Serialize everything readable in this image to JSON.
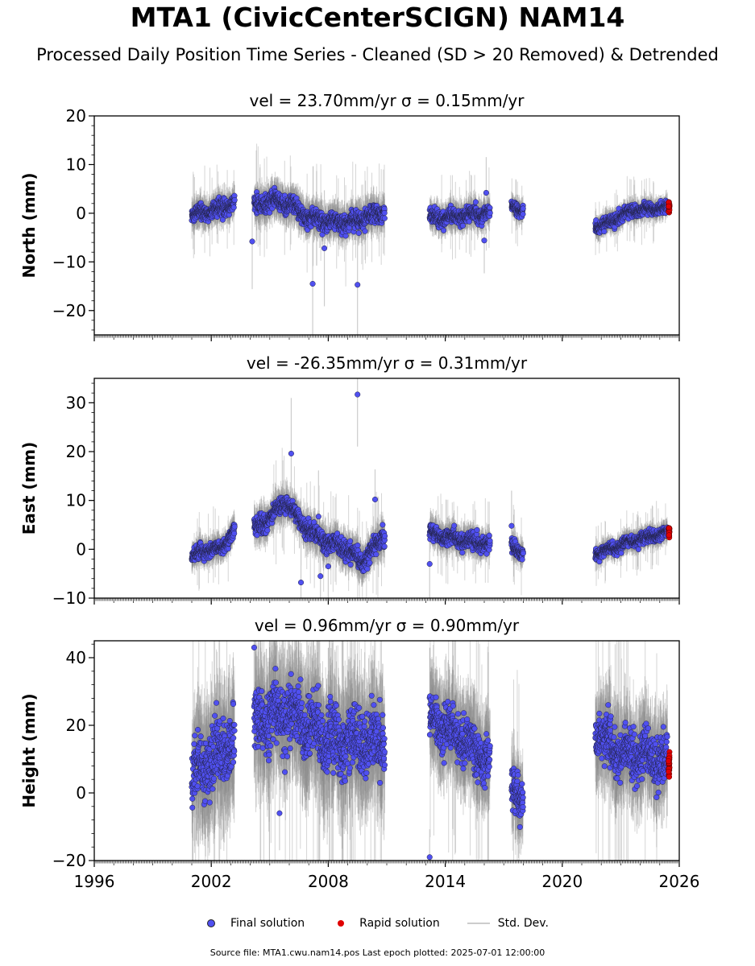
{
  "title": "MTA1 (CivicCenterSCIGN) NAM14",
  "subtitle": "Processed Daily Position Time Series - Cleaned (SD > 20 Removed) & Detrended",
  "footer": "Source file: MTA1.cwu.nam14.pos  Last epoch plotted: 2025-07-01 12:00:00",
  "legend": {
    "final_label": "Final solution",
    "rapid_label": "Rapid solution",
    "std_label": "Std. Dev."
  },
  "colors": {
    "final": "#5050f0",
    "rapid": "#e00000",
    "std": "#cccccc",
    "axes": "#000000"
  },
  "chart_data": [
    {
      "type": "scatter",
      "title": "vel = 23.70mm/yr   σ = 0.15mm/yr",
      "ylabel": "North (mm)",
      "xlabel": "",
      "xlim": [
        1996,
        2026
      ],
      "ylim": [
        -25,
        20
      ],
      "yticks": [
        -20,
        -10,
        0,
        10,
        20
      ],
      "segments": [
        {
          "start": 2001.0,
          "end": 2003.2,
          "mean": [
            [
              2001.0,
              -0.5
            ],
            [
              2003.2,
              2.0
            ]
          ],
          "spread": 1.4
        },
        {
          "start": 2004.2,
          "end": 2010.9,
          "mean": [
            [
              2004.2,
              1.5
            ],
            [
              2005.2,
              2.5
            ],
            [
              2006.0,
              2.0
            ],
            [
              2007.0,
              -1.0
            ],
            [
              2008.5,
              -2.0
            ],
            [
              2009.5,
              -1.5
            ],
            [
              2010.9,
              0.5
            ]
          ],
          "spread": 1.6
        },
        {
          "start": 2013.2,
          "end": 2016.3,
          "mean": [
            [
              2013.2,
              -1.0
            ],
            [
              2016.3,
              0.0
            ]
          ],
          "spread": 1.3
        },
        {
          "start": 2017.4,
          "end": 2018.0,
          "mean": [
            [
              2017.4,
              1.5
            ],
            [
              2018.0,
              0.5
            ]
          ],
          "spread": 1.0
        },
        {
          "start": 2021.7,
          "end": 2025.4,
          "mean": [
            [
              2021.7,
              -3.0
            ],
            [
              2022.6,
              -1.5
            ],
            [
              2023.5,
              0.5
            ],
            [
              2025.4,
              1.2
            ]
          ],
          "spread": 1.0
        }
      ],
      "outliers": [
        [
          2007.2,
          -14.5
        ],
        [
          2009.5,
          -14.7
        ],
        [
          2004.1,
          -5.8
        ],
        [
          2007.8,
          -7.2
        ],
        [
          2016.1,
          4.2
        ],
        [
          2016.0,
          -5.6
        ]
      ],
      "rapid": {
        "start": 2025.45,
        "end": 2025.5,
        "mean": 1.2,
        "spread": 0.9
      }
    },
    {
      "type": "scatter",
      "title": "vel = -26.35mm/yr   σ = 0.31mm/yr",
      "ylabel": "East (mm)",
      "xlabel": "",
      "xlim": [
        1996,
        2026
      ],
      "ylim": [
        -10,
        35
      ],
      "yticks": [
        -10,
        0,
        10,
        20,
        30
      ],
      "segments": [
        {
          "start": 2001.0,
          "end": 2003.2,
          "mean": [
            [
              2001.0,
              -1.5
            ],
            [
              2001.8,
              0.0
            ],
            [
              2002.5,
              0.0
            ],
            [
              2003.2,
              4.0
            ]
          ],
          "spread": 1.2
        },
        {
          "start": 2004.2,
          "end": 2010.9,
          "mean": [
            [
              2004.2,
              4.0
            ],
            [
              2005.0,
              6.5
            ],
            [
              2005.8,
              10.0
            ],
            [
              2006.5,
              6.0
            ],
            [
              2007.2,
              3.0
            ],
            [
              2008.0,
              1.5
            ],
            [
              2009.0,
              0.0
            ],
            [
              2009.8,
              -2.5
            ],
            [
              2010.9,
              3.0
            ]
          ],
          "spread": 1.6
        },
        {
          "start": 2013.2,
          "end": 2016.3,
          "mean": [
            [
              2013.2,
              3.5
            ],
            [
              2014.0,
              2.5
            ],
            [
              2016.3,
              1.0
            ]
          ],
          "spread": 1.3
        },
        {
          "start": 2017.4,
          "end": 2018.0,
          "mean": [
            [
              2017.4,
              0.5
            ],
            [
              2018.0,
              -0.5
            ]
          ],
          "spread": 1.2
        },
        {
          "start": 2021.7,
          "end": 2025.4,
          "mean": [
            [
              2021.7,
              -1.0
            ],
            [
              2023.5,
              1.5
            ],
            [
              2025.4,
              3.5
            ]
          ],
          "spread": 1.0
        }
      ],
      "outliers": [
        [
          2009.5,
          31.7
        ],
        [
          2006.1,
          19.6
        ],
        [
          2010.4,
          10.2
        ],
        [
          2007.5,
          6.7
        ],
        [
          2013.2,
          -3.0
        ],
        [
          2006.6,
          -6.8
        ],
        [
          2007.6,
          -5.5
        ],
        [
          2008.0,
          -3.5
        ],
        [
          2017.4,
          4.8
        ]
      ],
      "rapid": {
        "start": 2025.45,
        "end": 2025.5,
        "mean": 3.5,
        "spread": 0.8
      }
    },
    {
      "type": "scatter",
      "title": "vel = 0.96mm/yr   σ = 0.90mm/yr",
      "ylabel": "Height (mm)",
      "xlabel": "",
      "xlim": [
        1996,
        2026
      ],
      "ylim": [
        -20,
        45
      ],
      "yticks": [
        -20,
        0,
        20,
        40
      ],
      "xticks": [
        1996,
        2002,
        2008,
        2014,
        2020,
        2026
      ],
      "segments": [
        {
          "start": 2001.0,
          "end": 2003.2,
          "mean": [
            [
              2001.0,
              5.0
            ],
            [
              2002.0,
              10.0
            ],
            [
              2003.2,
              15.0
            ]
          ],
          "spread": 8.0
        },
        {
          "start": 2004.2,
          "end": 2010.9,
          "mean": [
            [
              2004.2,
              20.0
            ],
            [
              2006.0,
              24.0
            ],
            [
              2008.0,
              15.0
            ],
            [
              2010.9,
              15.0
            ]
          ],
          "spread": 8.0
        },
        {
          "start": 2013.2,
          "end": 2016.3,
          "mean": [
            [
              2013.2,
              22.0
            ],
            [
              2014.5,
              18.0
            ],
            [
              2016.3,
              8.0
            ]
          ],
          "spread": 6.0
        },
        {
          "start": 2017.4,
          "end": 2018.0,
          "mean": [
            [
              2017.4,
              2.0
            ],
            [
              2018.0,
              -2.0
            ]
          ],
          "spread": 5.0
        },
        {
          "start": 2021.7,
          "end": 2025.4,
          "mean": [
            [
              2021.7,
              18.0
            ],
            [
              2023.0,
              12.0
            ],
            [
              2025.4,
              10.0
            ]
          ],
          "spread": 6.0
        }
      ],
      "outliers": [
        [
          2013.2,
          -19.0
        ],
        [
          2004.2,
          43.0
        ],
        [
          2005.5,
          -6.0
        ]
      ],
      "rapid": {
        "start": 2025.45,
        "end": 2025.5,
        "mean": 8.5,
        "spread": 3.0
      }
    }
  ]
}
